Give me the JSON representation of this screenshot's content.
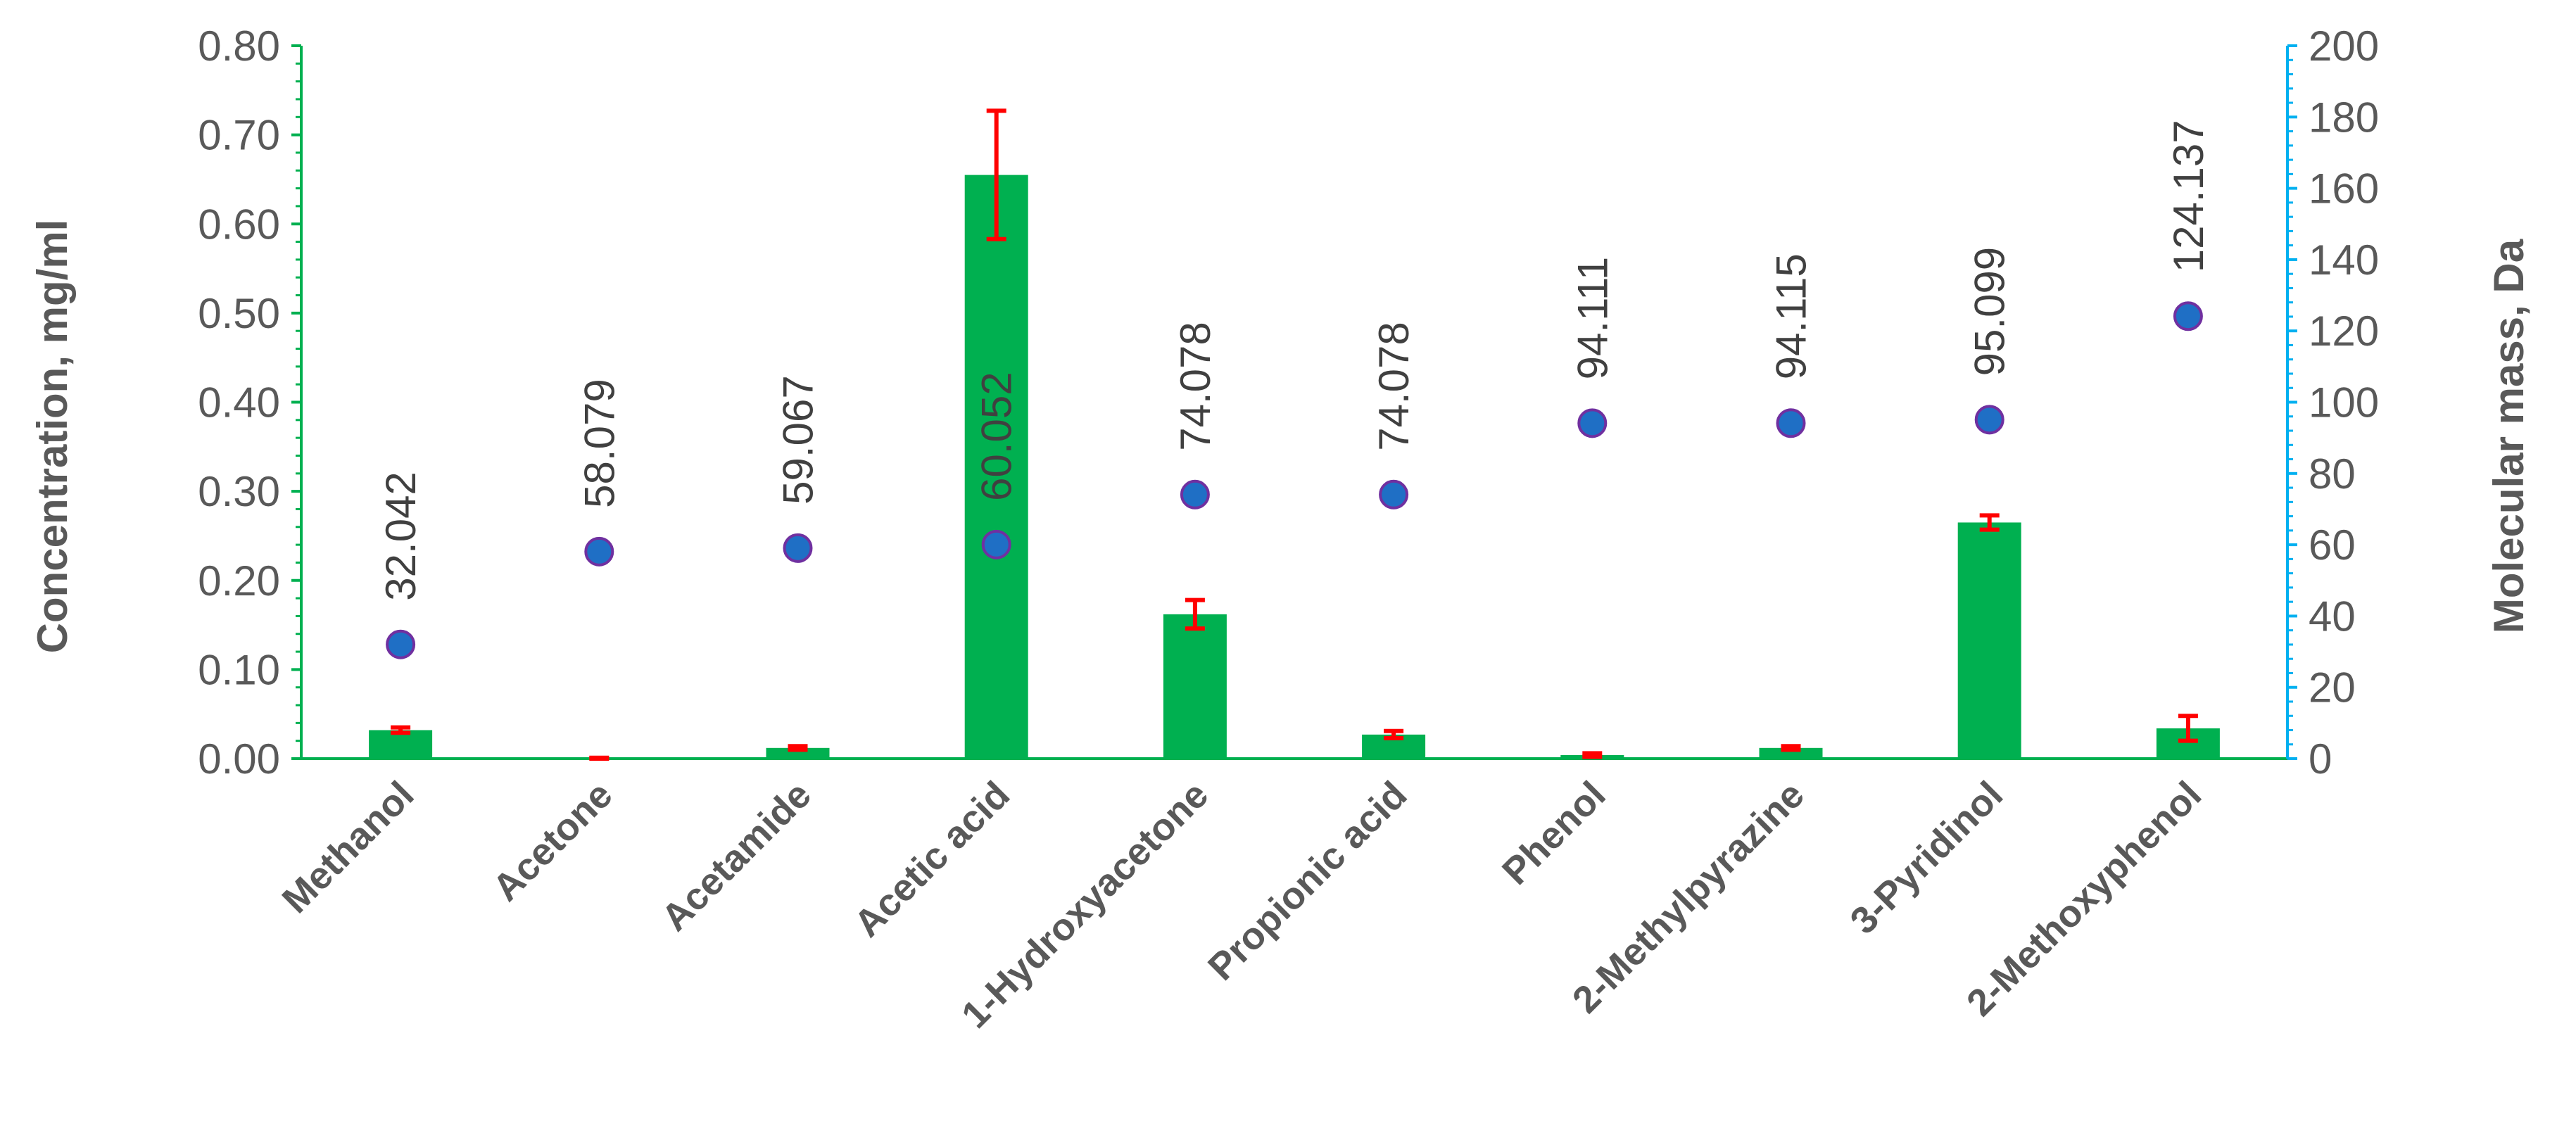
{
  "chart_data": {
    "type": "bar",
    "title": "",
    "ylabel": "Concentration, mg/ml",
    "y2label": "Molecular mass, Da",
    "ylim": [
      0,
      0.8
    ],
    "y2lim": [
      0,
      200
    ],
    "yticks": [
      "0.00",
      "0.10",
      "0.20",
      "0.30",
      "0.40",
      "0.50",
      "0.60",
      "0.70",
      "0.80"
    ],
    "y2ticks": [
      "0",
      "20",
      "40",
      "60",
      "80",
      "100",
      "120",
      "140",
      "160",
      "180",
      "200"
    ],
    "categories": [
      "Methanol",
      "Acetone",
      "Acetamide",
      "Acetic acid",
      "1-Hydroxyacetone",
      "Propionic acid",
      "Phenol",
      "2-Methylpyrazine",
      "3-Pyridinol",
      "2-Methoxyphenol"
    ],
    "series": [
      {
        "type": "bar",
        "axis": "left",
        "values": [
          0.032,
          0.0,
          0.012,
          0.655,
          0.162,
          0.027,
          0.004,
          0.012,
          0.265,
          0.034
        ],
        "errors": [
          0.003,
          0.001,
          0.002,
          0.072,
          0.016,
          0.004,
          0.002,
          0.002,
          0.008,
          0.014
        ]
      },
      {
        "type": "scatter",
        "axis": "right",
        "values": [
          32.042,
          58.079,
          59.067,
          60.052,
          74.078,
          74.078,
          94.111,
          94.115,
          95.099,
          124.137
        ],
        "labels": [
          "32.042",
          "58.079",
          "59.067",
          "60.052",
          "74.078",
          "74.078",
          "94.111",
          "94.115",
          "95.099",
          "124.137"
        ]
      }
    ],
    "colors": {
      "bar": "#00b050",
      "error": "#ff0000",
      "point": "#1f6fc5",
      "point_edge": "#7030a0",
      "left_axis": "#00b050",
      "right_axis": "#00b0f0"
    },
    "grid": false,
    "legend": "none"
  }
}
